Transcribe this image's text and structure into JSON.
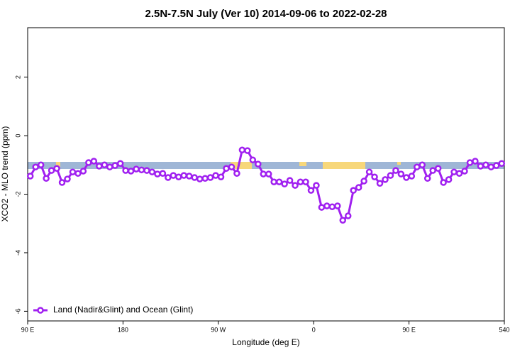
{
  "chart_data": {
    "type": "line",
    "title": "2.5N-7.5N July (Ver 10)   2014-09-06 to 2022-02-28",
    "xlabel": "Longitude (deg E)",
    "ylabel": "XCO2 - MLO trend (ppm)",
    "xlim": [
      90,
      540
    ],
    "ylim": [
      -6.33,
      3.69
    ],
    "xticks": [
      {
        "value": 90,
        "label": "90 E"
      },
      180,
      {
        "value": 270,
        "label": "90 W"
      },
      {
        "value": 360,
        "label": "0"
      },
      {
        "value": 450,
        "label": "90 E"
      },
      540
    ],
    "yticks": [
      -6,
      -4,
      -2,
      0,
      2
    ],
    "legend": "bottom-left",
    "x": [
      92.5,
      97.5,
      102.5,
      107.5,
      112.5,
      117.5,
      122.5,
      127.5,
      132.5,
      137.5,
      142.5,
      147.5,
      152.5,
      157.5,
      162.5,
      167.5,
      172.5,
      177.5,
      182.5,
      187.5,
      192.5,
      197.5,
      202.5,
      207.5,
      212.5,
      217.5,
      222.5,
      227.5,
      232.5,
      237.5,
      242.5,
      247.5,
      252.5,
      257.5,
      262.5,
      267.5,
      272.5,
      277.5,
      282.5,
      287.5,
      292.5,
      297.5,
      302.5,
      307.5,
      312.5,
      317.5,
      322.5,
      327.5,
      332.5,
      337.5,
      342.5,
      347.5,
      352.5,
      357.5,
      362.5,
      367.5,
      372.5,
      377.5,
      382.5,
      387.5,
      392.5,
      397.5,
      402.5,
      407.5,
      412.5,
      417.5,
      422.5,
      427.5,
      432.5,
      437.5,
      442.5,
      447.5,
      452.5,
      457.5,
      462.5,
      467.5,
      472.5,
      477.5,
      482.5,
      487.5,
      492.5,
      497.5,
      502.5,
      507.5,
      512.5,
      517.5,
      522.5,
      527.5,
      532.5,
      537.5
    ],
    "series": [
      {
        "name": "Land (Nadir&Glint) and Ocean (Glint)",
        "color": "#a020f0",
        "values": [
          -1.38,
          -1.07,
          -1.0,
          -1.46,
          -1.19,
          -1.12,
          -1.6,
          -1.48,
          -1.24,
          -1.29,
          -1.21,
          -0.92,
          -0.87,
          -1.04,
          -1.0,
          -1.07,
          -1.02,
          -0.95,
          -1.19,
          -1.21,
          -1.14,
          -1.17,
          -1.19,
          -1.24,
          -1.31,
          -1.29,
          -1.43,
          -1.36,
          -1.41,
          -1.36,
          -1.38,
          -1.43,
          -1.48,
          -1.46,
          -1.43,
          -1.36,
          -1.41,
          -1.12,
          -1.07,
          -1.29,
          -0.49,
          -0.51,
          -0.83,
          -0.97,
          -1.31,
          -1.31,
          -1.58,
          -1.58,
          -1.65,
          -1.53,
          -1.7,
          -1.58,
          -1.58,
          -1.87,
          -1.7,
          -2.45,
          -2.4,
          -2.43,
          -2.4,
          -2.89,
          -2.74,
          -1.87,
          -1.77,
          -1.55,
          -1.24,
          -1.41,
          -1.63,
          -1.5,
          -1.36,
          -1.19,
          -1.31,
          -1.43,
          -1.38,
          -1.07,
          -1.0,
          -1.46,
          -1.19,
          -1.12,
          -1.6,
          -1.5,
          -1.24,
          -1.29,
          -1.21,
          -0.92,
          -0.87,
          -1.04,
          -1.0,
          -1.07,
          -1.02,
          -0.95
        ]
      }
    ]
  }
}
